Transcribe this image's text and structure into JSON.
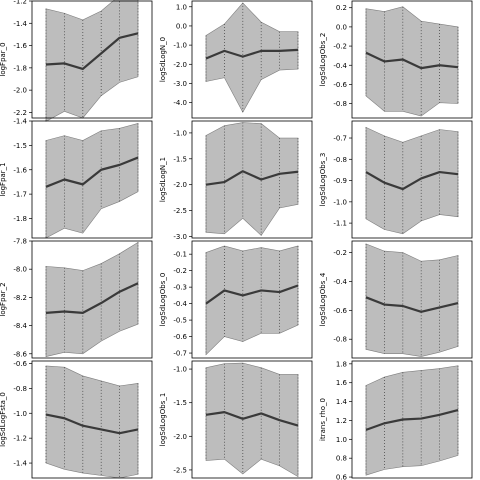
{
  "chart_data": [
    {
      "type": "line",
      "ylabel": "logFpar_0",
      "ylim": [
        -2.25,
        -1.2
      ],
      "yticks": [
        -1.2,
        -1.4,
        -1.6,
        -1.8,
        -2.0,
        -2.2
      ],
      "x": [
        1,
        2,
        3,
        4,
        5,
        6
      ],
      "mean": [
        -1.77,
        -1.76,
        -1.81,
        -1.67,
        -1.53,
        -1.49
      ],
      "upper": [
        -1.27,
        -1.31,
        -1.37,
        -1.29,
        -1.15,
        -1.13
      ],
      "lower": [
        -2.28,
        -2.19,
        -2.25,
        -2.05,
        -1.93,
        -1.88
      ]
    },
    {
      "type": "line",
      "ylabel": "logSdLogN_0",
      "ylim": [
        -4.8,
        1.3
      ],
      "yticks": [
        1,
        0,
        -1,
        -2,
        -3,
        -4
      ],
      "x": [
        1,
        2,
        3,
        4,
        5,
        6
      ],
      "mean": [
        -1.7,
        -1.3,
        -1.6,
        -1.3,
        -1.3,
        -1.25
      ],
      "upper": [
        -0.5,
        0.1,
        1.2,
        0.2,
        -0.3,
        -0.3
      ],
      "lower": [
        -2.9,
        -2.7,
        -4.5,
        -2.8,
        -2.3,
        -2.25
      ]
    },
    {
      "type": "line",
      "ylabel": "logSdLogObs_2",
      "ylim": [
        -0.95,
        0.27
      ],
      "yticks": [
        0.2,
        0.0,
        -0.2,
        -0.4,
        -0.6,
        -0.8
      ],
      "x": [
        1,
        2,
        3,
        4,
        5,
        6
      ],
      "mean": [
        -0.27,
        -0.36,
        -0.34,
        -0.43,
        -0.4,
        -0.42
      ],
      "upper": [
        0.19,
        0.16,
        0.21,
        0.06,
        0.03,
        0.0
      ],
      "lower": [
        -0.72,
        -0.88,
        -0.88,
        -0.93,
        -0.79,
        -0.8
      ]
    },
    {
      "type": "line",
      "ylabel": "logFpar_1",
      "ylim": [
        -1.88,
        -1.4
      ],
      "yticks": [
        -1.4,
        -1.5,
        -1.6,
        -1.7,
        -1.8
      ],
      "x": [
        1,
        2,
        3,
        4,
        5,
        6
      ],
      "mean": [
        -1.67,
        -1.64,
        -1.66,
        -1.6,
        -1.58,
        -1.55
      ],
      "upper": [
        -1.48,
        -1.46,
        -1.48,
        -1.44,
        -1.43,
        -1.41
      ],
      "lower": [
        -1.88,
        -1.84,
        -1.86,
        -1.76,
        -1.73,
        -1.69
      ]
    },
    {
      "type": "line",
      "ylabel": "logSdLogN_1",
      "ylim": [
        -3.03,
        -0.77
      ],
      "yticks": [
        -1.0,
        -1.5,
        -2.0,
        -2.5,
        -3.0
      ],
      "x": [
        1,
        2,
        3,
        4,
        5,
        6
      ],
      "mean": [
        -2.0,
        -1.95,
        -1.74,
        -1.9,
        -1.79,
        -1.75
      ],
      "upper": [
        -1.05,
        -0.86,
        -0.8,
        -0.82,
        -1.1,
        -1.1
      ],
      "lower": [
        -2.92,
        -2.95,
        -2.65,
        -2.98,
        -2.45,
        -2.38
      ]
    },
    {
      "type": "line",
      "ylabel": "logSdLogObs_3",
      "ylim": [
        -1.17,
        -0.62
      ],
      "yticks": [
        -0.7,
        -0.8,
        -0.9,
        -1.0,
        -1.1
      ],
      "x": [
        1,
        2,
        3,
        4,
        5,
        6
      ],
      "mean": [
        -0.86,
        -0.91,
        -0.94,
        -0.89,
        -0.86,
        -0.87
      ],
      "upper": [
        -0.65,
        -0.69,
        -0.72,
        -0.69,
        -0.66,
        -0.67
      ],
      "lower": [
        -1.08,
        -1.13,
        -1.15,
        -1.09,
        -1.06,
        -1.07
      ]
    },
    {
      "type": "line",
      "ylabel": "logFpar_2",
      "ylim": [
        -8.63,
        -7.8
      ],
      "yticks": [
        -7.8,
        -8.0,
        -8.2,
        -8.4,
        -8.6
      ],
      "x": [
        1,
        2,
        3,
        4,
        5,
        6
      ],
      "mean": [
        -8.31,
        -8.3,
        -8.31,
        -8.24,
        -8.16,
        -8.1
      ],
      "upper": [
        -7.98,
        -7.99,
        -8.01,
        -7.96,
        -7.89,
        -7.81
      ],
      "lower": [
        -8.62,
        -8.59,
        -8.6,
        -8.51,
        -8.44,
        -8.39
      ]
    },
    {
      "type": "line",
      "ylabel": "logSdLogObs_0",
      "ylim": [
        -0.73,
        -0.02
      ],
      "yticks": [
        -0.1,
        -0.2,
        -0.3,
        -0.4,
        -0.5,
        -0.6,
        -0.7
      ],
      "x": [
        1,
        2,
        3,
        4,
        5,
        6
      ],
      "mean": [
        -0.4,
        -0.32,
        -0.35,
        -0.32,
        -0.33,
        -0.29
      ],
      "upper": [
        -0.09,
        -0.05,
        -0.08,
        -0.06,
        -0.08,
        -0.05
      ],
      "lower": [
        -0.71,
        -0.6,
        -0.63,
        -0.58,
        -0.58,
        -0.53
      ]
    },
    {
      "type": "line",
      "ylabel": "logSdLogObs_4",
      "ylim": [
        -0.93,
        -0.12
      ],
      "yticks": [
        -0.2,
        -0.4,
        -0.6,
        -0.8
      ],
      "x": [
        1,
        2,
        3,
        4,
        5,
        6
      ],
      "mean": [
        -0.51,
        -0.56,
        -0.57,
        -0.61,
        -0.58,
        -0.55
      ],
      "upper": [
        -0.14,
        -0.19,
        -0.2,
        -0.26,
        -0.25,
        -0.22
      ],
      "lower": [
        -0.87,
        -0.9,
        -0.9,
        -0.92,
        -0.89,
        -0.85
      ]
    },
    {
      "type": "line",
      "ylabel": "logSdLogFsta_0",
      "ylim": [
        -1.52,
        -0.58
      ],
      "yticks": [
        -0.6,
        -0.8,
        -1.0,
        -1.2,
        -1.4
      ],
      "x": [
        1,
        2,
        3,
        4,
        5,
        6
      ],
      "mean": [
        -1.01,
        -1.04,
        -1.1,
        -1.13,
        -1.16,
        -1.13
      ],
      "upper": [
        -0.62,
        -0.63,
        -0.7,
        -0.74,
        -0.78,
        -0.76
      ],
      "lower": [
        -1.4,
        -1.45,
        -1.48,
        -1.5,
        -1.52,
        -1.49
      ]
    },
    {
      "type": "line",
      "ylabel": "logSdLogObs_1",
      "ylim": [
        -2.62,
        -0.88
      ],
      "yticks": [
        -1.0,
        -1.5,
        -2.0,
        -2.5
      ],
      "x": [
        1,
        2,
        3,
        4,
        5,
        6
      ],
      "mean": [
        -1.68,
        -1.64,
        -1.74,
        -1.66,
        -1.76,
        -1.84
      ],
      "upper": [
        -0.98,
        -0.92,
        -0.91,
        -0.98,
        -1.08,
        -1.08
      ],
      "lower": [
        -2.36,
        -2.34,
        -2.56,
        -2.34,
        -2.44,
        -2.6
      ]
    },
    {
      "type": "line",
      "ylabel": "itrans_rho_0",
      "ylim": [
        0.59,
        1.83
      ],
      "yticks": [
        1.8,
        1.6,
        1.4,
        1.2,
        1.0,
        0.8,
        0.6
      ],
      "x": [
        1,
        2,
        3,
        4,
        5,
        6
      ],
      "mean": [
        1.1,
        1.17,
        1.21,
        1.22,
        1.26,
        1.31
      ],
      "upper": [
        1.57,
        1.66,
        1.71,
        1.73,
        1.75,
        1.78
      ],
      "lower": [
        0.62,
        0.68,
        0.71,
        0.72,
        0.77,
        0.83
      ]
    }
  ],
  "colors": {
    "band": "#bdbdbd",
    "bandEdge": "#7f7f7f",
    "mean": "#3a3a3a",
    "axis": "#000000",
    "dots": "#4a4a4a"
  }
}
